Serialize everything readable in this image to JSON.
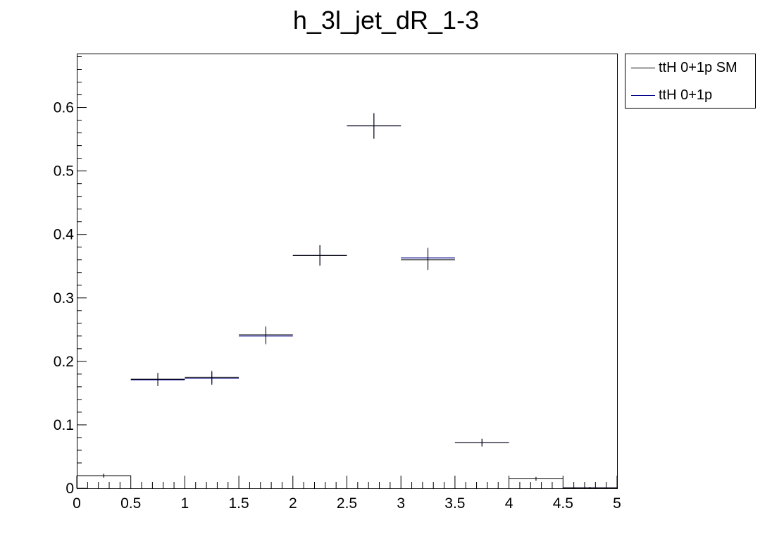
{
  "chart_data": {
    "type": "histogram",
    "title": "h_3l_jet_dR_1-3",
    "xlim": [
      0,
      5
    ],
    "ylim": [
      0,
      0.685
    ],
    "x_ticks": [
      "0",
      "0.5",
      "1",
      "1.5",
      "2",
      "2.5",
      "3",
      "3.5",
      "4",
      "4.5",
      "5"
    ],
    "y_ticks": [
      "0",
      "0.1",
      "0.2",
      "0.3",
      "0.4",
      "0.5",
      "0.6"
    ],
    "bin_edges": [
      0,
      0.5,
      1,
      1.5,
      2,
      2.5,
      3,
      3.5,
      4,
      4.5,
      5
    ],
    "legend_position": "top-right-outside",
    "series": [
      {
        "name": "ttH 0+1p SM",
        "color": "#000000",
        "values": [
          0.02,
          0.172,
          0.175,
          0.242,
          0.367,
          0.571,
          0.36,
          0.072,
          0.015,
          0.001
        ],
        "errors": [
          0.003,
          0.01,
          0.01,
          0.013,
          0.016,
          0.02,
          0.016,
          0.006,
          0.003,
          0.001
        ]
      },
      {
        "name": "ttH 0+1p",
        "color": "#00008b",
        "values": [
          0.02,
          0.171,
          0.173,
          0.24,
          0.367,
          0.571,
          0.363,
          0.072,
          0.015,
          0.001
        ],
        "errors": [
          0.003,
          0.01,
          0.01,
          0.013,
          0.016,
          0.02,
          0.016,
          0.006,
          0.003,
          0.001
        ]
      }
    ]
  }
}
